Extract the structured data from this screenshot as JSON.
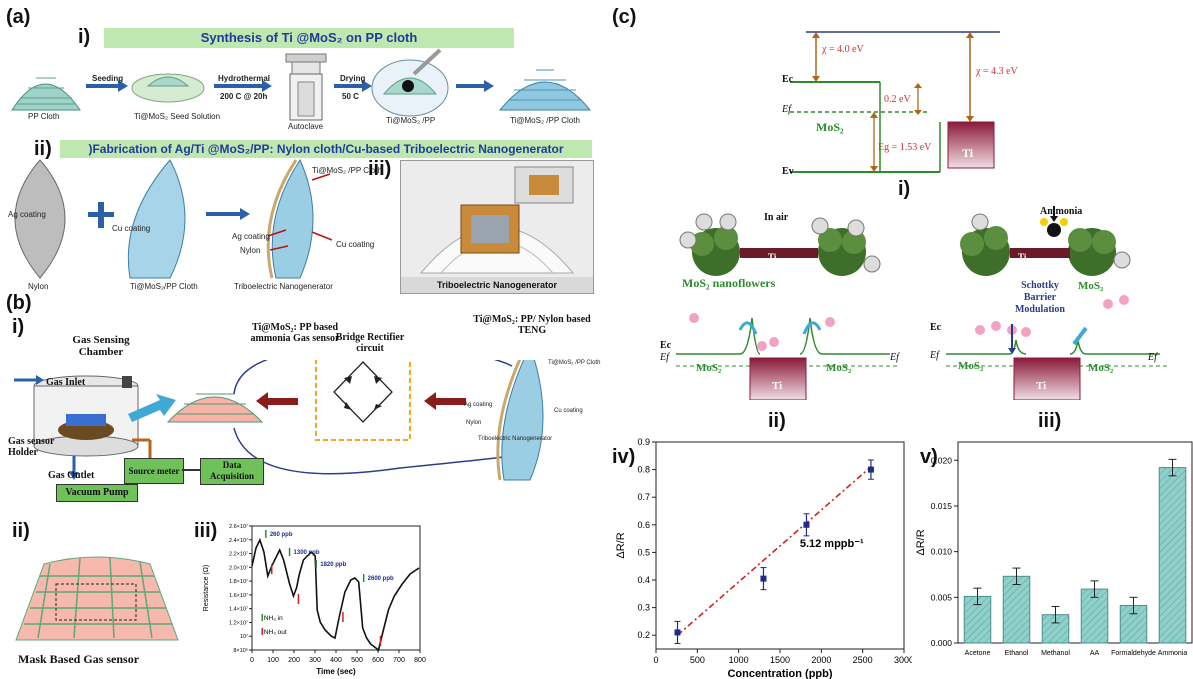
{
  "colors": {
    "banner_bg": "#bfe8b0",
    "banner_text": "#1f3b9a",
    "arrow_blue": "#2d5fa8",
    "arrow_red": "#8b1c1c",
    "mos2_green": "#2e8b2e",
    "ti_maroon": "#8a1a3a",
    "vacuum_label_bg": "#6fc25a",
    "teal_bar": "#7fc6c2",
    "fit_line": "#d21f1f",
    "point_navy": "#1f2a8a",
    "rectifier_dash": "#f5a623",
    "loop_blue": "#2a3b8f"
  },
  "panel_a": {
    "letter": "(a)",
    "sub_i": "i)",
    "sub_ii": "ii)",
    "sub_iii": "iii)",
    "banner_i": "Synthesis of Ti @MoS₂ on PP cloth",
    "banner_ii": ")Fabrication of Ag/Ti @MoS₂/PP: Nylon cloth/Cu-based Triboelectric Nanogenerator",
    "pp_cloth": "PP Cloth",
    "seeding": "Seeding",
    "seed_solution": "Ti@MoS₂ Seed Solution",
    "hydrothermal": "Hydrothermal",
    "hydro_cond": "200 C @ 20h",
    "autoclave": "Autoclave",
    "drying": "Drying",
    "drying_temp": "50 C",
    "ti_mos2_pp": "Ti@MoS₂ /PP",
    "ti_mos2_pp_cloth": "Ti@MoS₂ /PP Cloth",
    "ag_coating": "Ag coating",
    "cu_coating": "Cu coating",
    "nylon": "Nylon",
    "ti_mos2_pp_cloth2": "Ti@MoS₂/PP Cloth",
    "teng_ti": "Ti@MoS₂ /PP Cloth",
    "teng_ag": "Ag coating",
    "teng_nylon": "Nylon",
    "teng_cu": "Cu coating",
    "teng_label": "Triboelectric Nanogenerator",
    "photo_caption": "Triboelectric Nanogenerator"
  },
  "panel_b": {
    "letter": "(b)",
    "sub_i": "i)",
    "sub_ii": "ii)",
    "sub_iii": "iii)",
    "chamber": "Gas Sensing Chamber",
    "gas_inlet": "Gas Inlet",
    "sensor_holder": "Gas sensor Holder",
    "gas_outlet": "Gas Outlet",
    "vacuum_pump": "Vacuum Pump",
    "source_meter": "Source meter",
    "data_acq": "Data Acquisition",
    "ammonia_sensor": "Ti@MoS₂: PP based ammonia Gas sensor",
    "rectifier": "Bridge Rectifier circuit",
    "teng_title": "Ti@MoS₂: PP/ Nylon based TENG",
    "teng_ti": "Ti@MoS₂ /PP Cloth",
    "teng_ag": "Ag coating",
    "teng_nylon": "Nylon",
    "teng_cu": "Cu coating",
    "teng_label": "Triboelectric Nanogenerator",
    "mask_caption": "Mask Based Gas sensor"
  },
  "panel_c": {
    "letter": "(c)",
    "chi_mos2": "χ = 4.0 eV",
    "chi_ti": "χ = 4.3 eV",
    "ec": "Ec",
    "ef": "Ef",
    "ev": "Ev",
    "gap_02": "0.2 eV",
    "mos2": "MoS₂",
    "eg": "Eg = 1.53 eV",
    "ti": "Ti",
    "sub_i": "i)",
    "in_air": "In air",
    "ammonia": "Ammonia",
    "nanoflowers": "MoS₂ nanoflowers",
    "schottky": "Schottky Barrier Modulation",
    "sub_ii": "ii)",
    "sub_iii": "iii)"
  },
  "chart_data": [
    {
      "type": "scatter",
      "panel": "iii)",
      "xlabel": "Time (sec)",
      "ylabel": "Resistance (Ω)",
      "xlim": [
        0,
        850
      ],
      "x_ticks": [
        "0",
        "100",
        "200",
        "300",
        "400",
        "500",
        "600",
        "700",
        "800"
      ],
      "y_ticks": [
        "2.6×10⁷",
        "2.4×10⁷",
        "2.2×10⁷",
        "2.0×10⁷",
        "1.8×10⁷",
        "1.6×10⁷",
        "1.4×10⁷",
        "1.2×10⁷",
        "10⁷",
        "8×10⁶"
      ],
      "annotations": [
        "260 ppb",
        "1300 ppb",
        "1820 ppb",
        "2600 ppb"
      ],
      "legend": [
        "NH₃ in",
        "NH₃ out"
      ]
    },
    {
      "type": "scatter",
      "panel": "iv)",
      "xlabel": "Concentration (ppb)",
      "ylabel": "ΔR/R",
      "xlim": [
        0,
        3000
      ],
      "ylim": [
        0.15,
        0.9
      ],
      "x_ticks": [
        "0",
        "500",
        "1000",
        "1500",
        "2000",
        "2500",
        "3000"
      ],
      "y_ticks": [
        "0.2",
        "0.3",
        "0.4",
        "0.5",
        "0.6",
        "0.7",
        "0.8",
        "0.9"
      ],
      "x": [
        260,
        1300,
        1820,
        2600
      ],
      "y": [
        0.21,
        0.405,
        0.6,
        0.8
      ],
      "err": [
        0.04,
        0.04,
        0.04,
        0.035
      ],
      "fit": {
        "x": [
          260,
          2600
        ],
        "y": [
          0.2,
          0.81
        ]
      },
      "annotation": "5.12 mppb⁻¹"
    },
    {
      "type": "bar",
      "panel": "v)",
      "ylabel": "ΔR/R",
      "ylim": [
        0,
        0.022
      ],
      "y_ticks": [
        "0.000",
        "0.005",
        "0.010",
        "0.015",
        "0.020"
      ],
      "categories": [
        "Acetone",
        "Ethanol",
        "Methanol",
        "AA",
        "Formaldehyde",
        "Ammonia"
      ],
      "values": [
        0.0051,
        0.0073,
        0.0031,
        0.0059,
        0.0041,
        0.0192
      ],
      "err": [
        0.0009,
        0.0009,
        0.0009,
        0.0009,
        0.0009,
        0.0009
      ]
    }
  ]
}
